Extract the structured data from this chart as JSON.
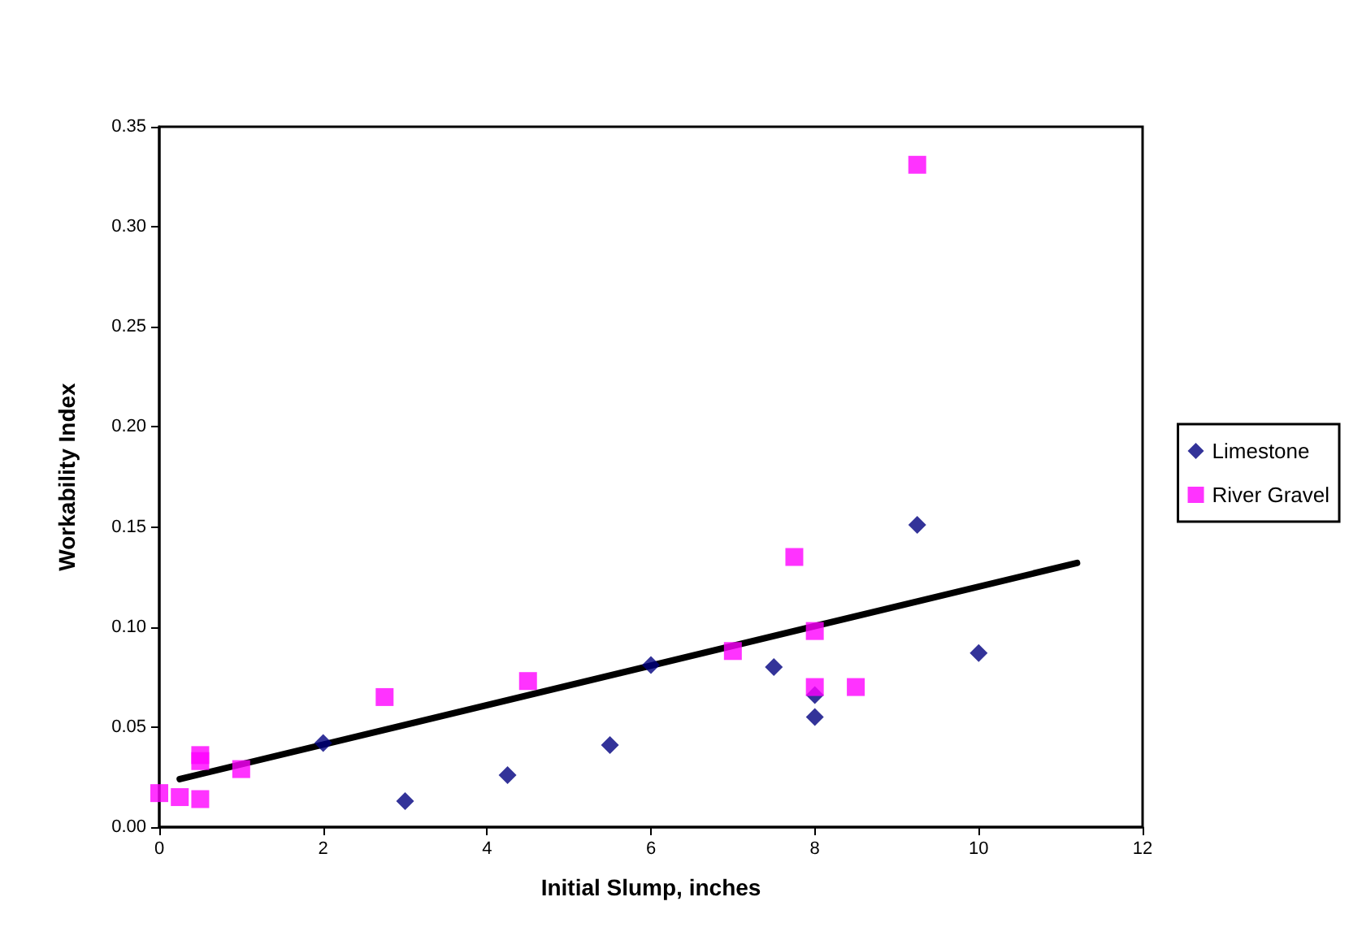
{
  "chart_data": {
    "type": "scatter",
    "xlabel": "Initial Slump, inches",
    "ylabel": "Workability Index",
    "xlim": [
      0,
      12
    ],
    "xticks": [
      0,
      2,
      4,
      6,
      8,
      10,
      12
    ],
    "ylim": [
      0,
      0.35
    ],
    "yticks": [
      {
        "value": 0,
        "label": "0.00"
      },
      0.05,
      {
        "value": 0.1,
        "label": "0.10"
      },
      0.15,
      {
        "value": 0.2,
        "label": "0.20"
      },
      0.25,
      {
        "value": 0.3,
        "label": "0.30"
      },
      0.35
    ],
    "grid": false,
    "legend": "right",
    "series": [
      {
        "name": "Limestone",
        "color": "#000080",
        "marker": "diamond",
        "x": [
          2,
          3,
          4.25,
          5.5,
          6,
          7.5,
          8,
          8,
          9.25,
          10
        ],
        "values": [
          0.042,
          0.013,
          0.026,
          0.041,
          0.081,
          0.08,
          0.066,
          0.055,
          0.151,
          0.087
        ]
      },
      {
        "name": "River Gravel",
        "color": "#ff00ff",
        "marker": "square",
        "x": [
          0,
          0.25,
          0.5,
          0.5,
          0.5,
          1,
          2.75,
          4.5,
          7,
          7.75,
          8,
          8,
          8.5,
          9.25
        ],
        "values": [
          0.017,
          0.015,
          0.014,
          0.033,
          0.036,
          0.029,
          0.065,
          0.073,
          0.088,
          0.135,
          0.098,
          0.07,
          0.07,
          0.331
        ]
      },
      {
        "type": "line",
        "color": "#000000",
        "marker": "none",
        "line_style": "solid",
        "x": [
          0.25,
          11.2
        ],
        "values": [
          0.024,
          0.132
        ]
      }
    ]
  }
}
